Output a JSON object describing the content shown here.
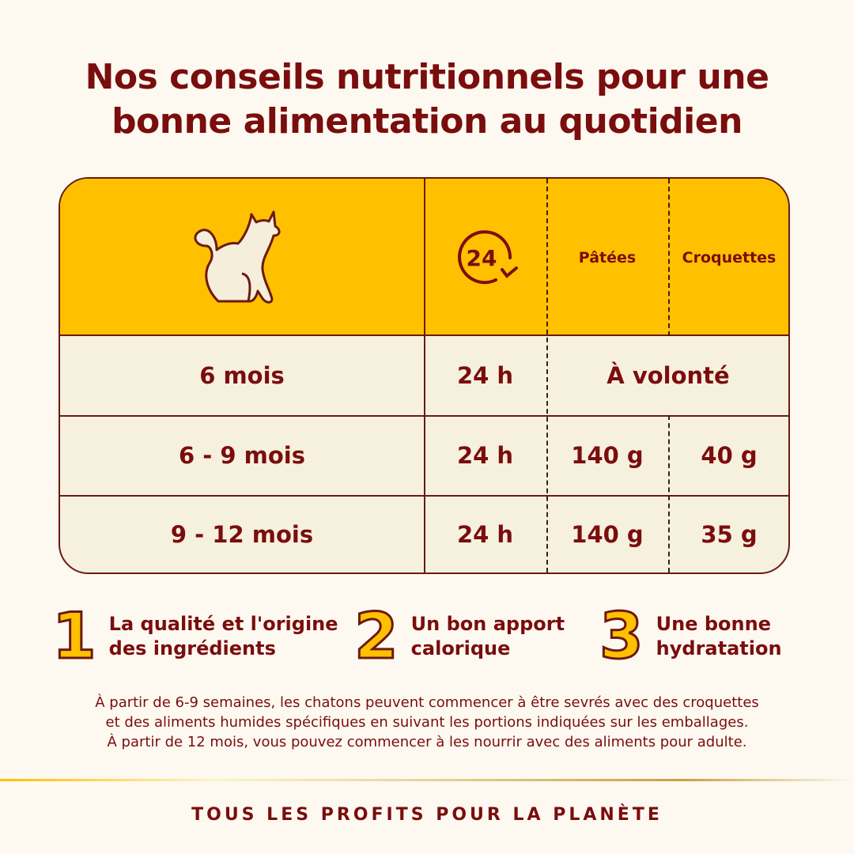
{
  "title_line1": "Nos conseils nutritionnels pour une",
  "title_line2": "bonne alimentation au quotidien",
  "table": {
    "header": {
      "icon_cat": "cat-icon",
      "icon_24": "24",
      "col_patees": "Pâtées",
      "col_croquettes": "Croquettes"
    },
    "rows": [
      {
        "age": "6 mois",
        "duration": "24 h",
        "merged": "À volonté"
      },
      {
        "age": "6 - 9 mois",
        "duration": "24 h",
        "patees": "140 g",
        "croquettes": "40 g"
      },
      {
        "age": "9 - 12 mois",
        "duration": "24 h",
        "patees": "140 g",
        "croquettes": "35 g"
      }
    ]
  },
  "tips": [
    {
      "number": "1",
      "line1": "La qualité et l'origine",
      "line2": "des ingrédients"
    },
    {
      "number": "2",
      "line1": "Un bon apport",
      "line2": "calorique"
    },
    {
      "number": "3",
      "line1": "Une bonne",
      "line2": "hydratation"
    }
  ],
  "note": [
    "À partir de 6-9 semaines, les chatons peuvent commencer à être sevrés avec des croquettes",
    "et des aliments humides spécifiques en suivant les portions indiquées sur les emballages.",
    "À partir de 12 mois, vous pouvez commencer à les nourrir avec des aliments pour adulte."
  ],
  "footer": "TOUS LES PROFITS POUR LA PLANÈTE",
  "colors": {
    "accent": "#ffc000",
    "text": "#7a0d0d",
    "row_bg": "#f6f0df",
    "background": "#fdf9f1"
  }
}
